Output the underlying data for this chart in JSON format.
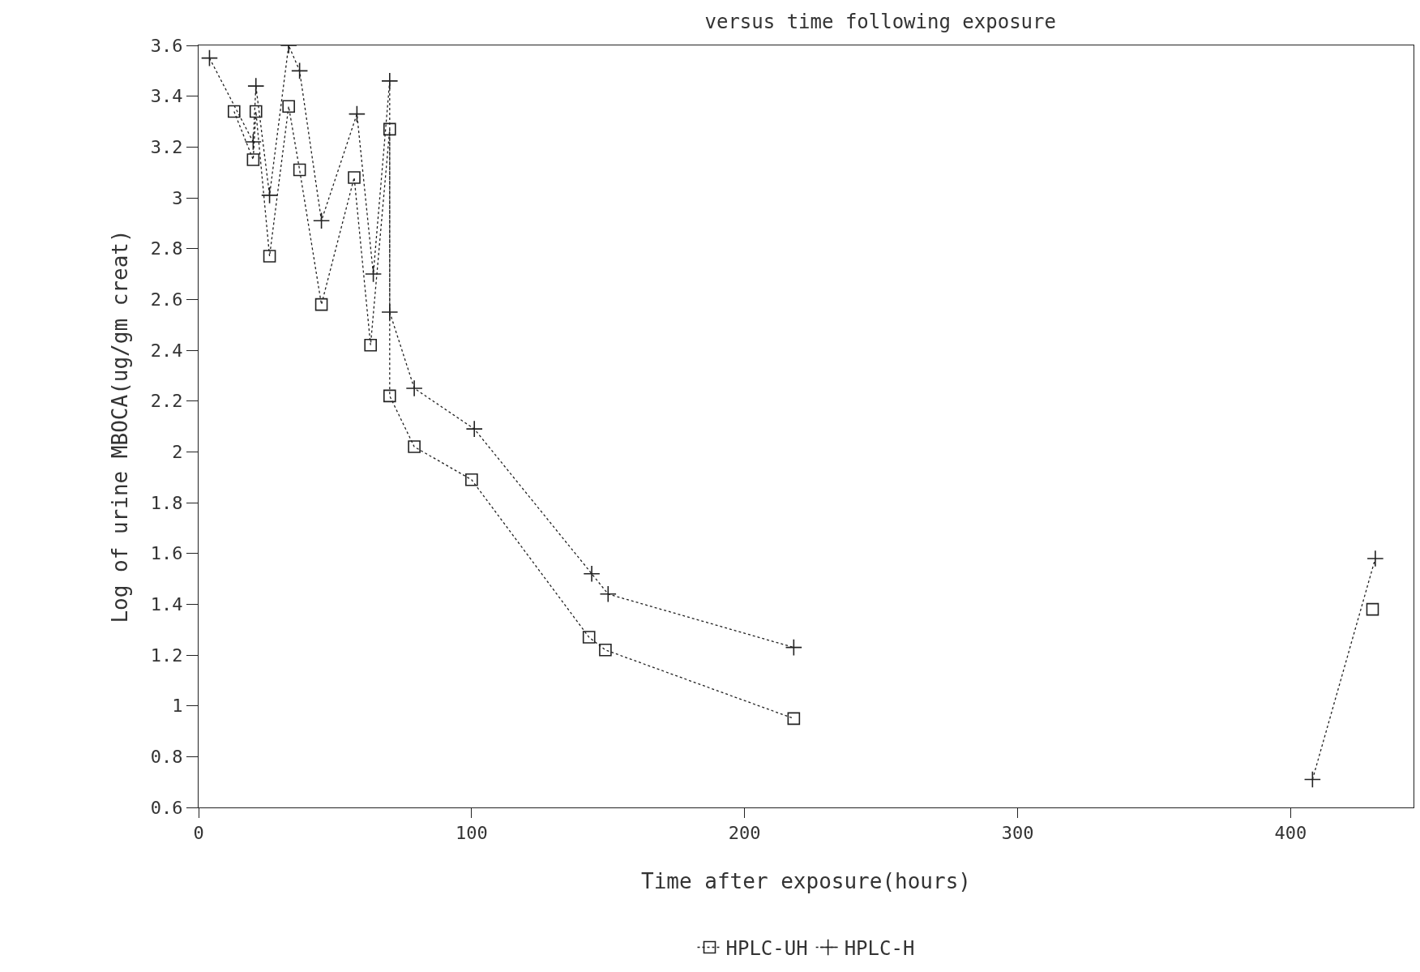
{
  "chart_data": {
    "type": "line",
    "title": "versus time following exposure",
    "xlabel": "Time after exposure(hours)",
    "ylabel": "Log of urine MBOCA(ug/gm creat)",
    "xlim": [
      0,
      445
    ],
    "xticks": [
      0,
      100,
      200,
      300,
      400
    ],
    "ylim": [
      0.6,
      3.6
    ],
    "yticks": [
      0.6,
      0.8,
      1,
      1.2,
      1.4,
      1.6,
      1.8,
      2,
      2.2,
      2.4,
      2.6,
      2.8,
      3,
      3.2,
      3.4,
      3.6
    ],
    "grid": false,
    "legend": "bottom",
    "line_style": "dotted",
    "series": [
      {
        "name": "HPLC-UH",
        "color": "#222222",
        "marker": "square",
        "x": [
          13,
          20,
          21,
          26,
          33,
          37,
          45,
          57,
          63,
          70,
          70,
          79,
          100,
          143,
          149,
          218,
          300,
          430
        ],
        "values": [
          3.34,
          3.15,
          3.34,
          2.77,
          3.36,
          3.11,
          2.58,
          3.08,
          2.42,
          3.27,
          2.22,
          2.02,
          1.89,
          1.27,
          1.22,
          0.95,
          null,
          1.38
        ]
      },
      {
        "name": "HPLC-H",
        "color": "#222222",
        "marker": "cross",
        "x": [
          4,
          20,
          21,
          26,
          33,
          37,
          45,
          58,
          64,
          70,
          70,
          79,
          101,
          144,
          150,
          218,
          300,
          408,
          431
        ],
        "values": [
          3.55,
          3.22,
          3.44,
          3.01,
          3.6,
          3.5,
          2.91,
          3.33,
          2.7,
          3.46,
          2.55,
          2.25,
          2.09,
          1.52,
          1.44,
          1.23,
          null,
          0.71,
          1.58
        ]
      }
    ]
  }
}
